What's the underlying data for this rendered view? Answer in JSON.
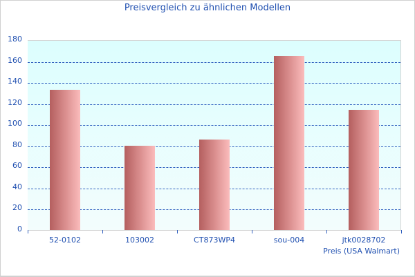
{
  "chart_data": {
    "type": "bar",
    "title": "Preisvergleich zu ähnlichen Modellen",
    "categories": [
      "52-0102",
      "103002",
      "CT873WP4",
      "sou-004",
      "jtk0028702"
    ],
    "series": [
      {
        "name": "Preis (USA Walmart)",
        "values": [
          133,
          80,
          86,
          165,
          114
        ]
      }
    ],
    "xlabel": "",
    "ylabel": "",
    "ylim": [
      0,
      180
    ],
    "yticks": [
      0,
      20,
      40,
      60,
      80,
      100,
      120,
      140,
      160,
      180
    ],
    "grid": true,
    "legend_position": "bottom-right",
    "colors": {
      "bar_dark": "#b45f5f",
      "bar_light": "#fbbcbc",
      "plot_bg": "#dcfefe",
      "grid": "#2f5fbf",
      "text": "#1f4fb0"
    }
  },
  "labels": {
    "title": "Preisvergleich zu ähnlichen Modellen",
    "series_label": "Preis (USA Walmart)",
    "yticks": [
      "0",
      "20",
      "40",
      "60",
      "80",
      "100",
      "120",
      "140",
      "160",
      "180"
    ],
    "categories": [
      "52-0102",
      "103002",
      "CT873WP4",
      "sou-004",
      "jtk0028702"
    ]
  }
}
